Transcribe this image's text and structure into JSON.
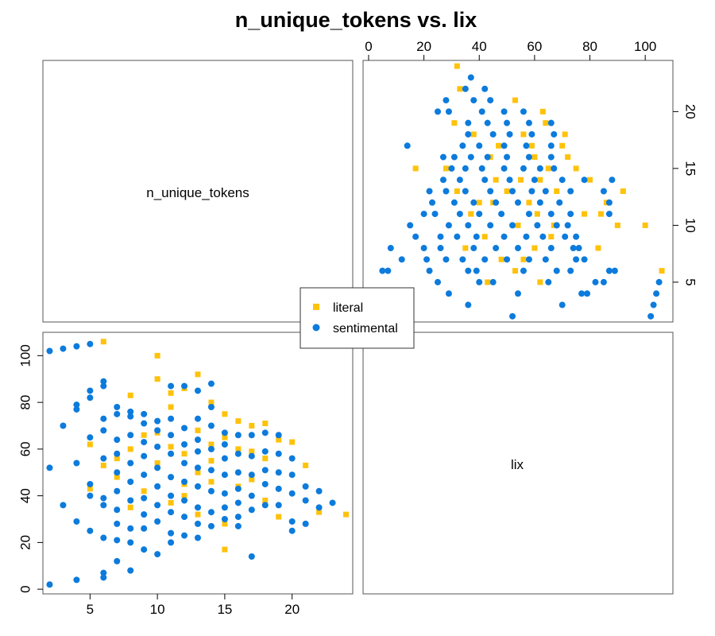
{
  "chart_data": {
    "type": "scatter",
    "title": "n_unique_tokens vs. lix",
    "variables": [
      "n_unique_tokens",
      "lix"
    ],
    "legend_position": "center",
    "colors": {
      "literal": "#FFC20A",
      "sentimental": "#0C7BDC"
    },
    "legend": [
      {
        "name": "literal",
        "color": "#FFC20A",
        "marker": "square"
      },
      {
        "name": "sentimental",
        "color": "#0C7BDC",
        "marker": "circle"
      }
    ],
    "axes": {
      "n_unique_tokens": {
        "range": [
          1.5,
          24.5
        ],
        "ticks_left": [
          5,
          10,
          15,
          20
        ],
        "ticks_right": [
          5,
          10,
          15,
          20
        ]
      },
      "lix": {
        "range": [
          -2,
          110
        ],
        "ticks": [
          0,
          20,
          40,
          60,
          80,
          100
        ]
      }
    },
    "series": [
      {
        "name": "literal",
        "x_variable": "n_unique_tokens",
        "y_variable": "lix",
        "points": [
          [
            6,
            106
          ],
          [
            10,
            100
          ],
          [
            10,
            90
          ],
          [
            13,
            92
          ],
          [
            12,
            86
          ],
          [
            11,
            84
          ],
          [
            8,
            83
          ],
          [
            14,
            80
          ],
          [
            15,
            75
          ],
          [
            11,
            78
          ],
          [
            24,
            32
          ],
          [
            22,
            33
          ],
          [
            21,
            53
          ],
          [
            20,
            63
          ],
          [
            19,
            64
          ],
          [
            19,
            31
          ],
          [
            18,
            71
          ],
          [
            17,
            70
          ],
          [
            16,
            72
          ],
          [
            16,
            44
          ],
          [
            17,
            59
          ],
          [
            17,
            47
          ],
          [
            18,
            56
          ],
          [
            18,
            38
          ],
          [
            14,
            62
          ],
          [
            14,
            55
          ],
          [
            13,
            68
          ],
          [
            13,
            50
          ],
          [
            12,
            58
          ],
          [
            12,
            45
          ],
          [
            11,
            61
          ],
          [
            11,
            37
          ],
          [
            10,
            67
          ],
          [
            10,
            54
          ],
          [
            9,
            66
          ],
          [
            9,
            42
          ],
          [
            8,
            60
          ],
          [
            8,
            35
          ],
          [
            7,
            56
          ],
          [
            7,
            48
          ],
          [
            6,
            53
          ],
          [
            5,
            62
          ],
          [
            5,
            43
          ],
          [
            15,
            17
          ],
          [
            15,
            28
          ],
          [
            13,
            32
          ],
          [
            12,
            40
          ],
          [
            16,
            60
          ],
          [
            15,
            65
          ],
          [
            14,
            46
          ]
        ]
      },
      {
        "name": "sentimental",
        "x_variable": "n_unique_tokens",
        "y_variable": "lix",
        "points": [
          [
            2,
            102
          ],
          [
            3,
            103
          ],
          [
            4,
            104
          ],
          [
            5,
            105
          ],
          [
            2,
            52
          ],
          [
            2,
            2
          ],
          [
            3,
            70
          ],
          [
            3,
            36
          ],
          [
            4,
            79
          ],
          [
            4,
            77
          ],
          [
            4,
            54
          ],
          [
            4,
            29
          ],
          [
            4,
            4
          ],
          [
            5,
            85
          ],
          [
            5,
            82
          ],
          [
            5,
            65
          ],
          [
            5,
            45
          ],
          [
            5,
            40
          ],
          [
            5,
            25
          ],
          [
            6,
            89
          ],
          [
            6,
            87
          ],
          [
            6,
            73
          ],
          [
            6,
            68
          ],
          [
            6,
            56
          ],
          [
            6,
            39
          ],
          [
            6,
            36
          ],
          [
            6,
            22
          ],
          [
            6,
            7
          ],
          [
            6,
            5
          ],
          [
            7,
            78
          ],
          [
            7,
            75
          ],
          [
            7,
            64
          ],
          [
            7,
            58
          ],
          [
            7,
            50
          ],
          [
            7,
            42
          ],
          [
            7,
            34
          ],
          [
            7,
            28
          ],
          [
            7,
            21
          ],
          [
            7,
            12
          ],
          [
            8,
            76
          ],
          [
            8,
            74
          ],
          [
            8,
            66
          ],
          [
            8,
            54
          ],
          [
            8,
            46
          ],
          [
            8,
            38
          ],
          [
            8,
            26
          ],
          [
            8,
            20
          ],
          [
            8,
            8
          ],
          [
            9,
            75
          ],
          [
            9,
            71
          ],
          [
            9,
            63
          ],
          [
            9,
            57
          ],
          [
            9,
            49
          ],
          [
            9,
            39
          ],
          [
            9,
            32
          ],
          [
            9,
            26
          ],
          [
            9,
            17
          ],
          [
            10,
            72
          ],
          [
            10,
            68
          ],
          [
            10,
            61
          ],
          [
            10,
            52
          ],
          [
            10,
            44
          ],
          [
            10,
            36
          ],
          [
            10,
            29
          ],
          [
            10,
            15
          ],
          [
            11,
            87
          ],
          [
            11,
            73
          ],
          [
            11,
            66
          ],
          [
            11,
            58
          ],
          [
            11,
            48
          ],
          [
            11,
            40
          ],
          [
            11,
            33
          ],
          [
            11,
            24
          ],
          [
            11,
            20
          ],
          [
            12,
            87
          ],
          [
            12,
            69
          ],
          [
            12,
            62
          ],
          [
            12,
            54
          ],
          [
            12,
            46
          ],
          [
            12,
            38
          ],
          [
            12,
            31
          ],
          [
            12,
            23
          ],
          [
            13,
            85
          ],
          [
            13,
            73
          ],
          [
            13,
            64
          ],
          [
            13,
            59
          ],
          [
            13,
            52
          ],
          [
            13,
            44
          ],
          [
            13,
            35
          ],
          [
            13,
            28
          ],
          [
            13,
            22
          ],
          [
            14,
            88
          ],
          [
            14,
            78
          ],
          [
            14,
            70
          ],
          [
            14,
            60
          ],
          [
            14,
            51
          ],
          [
            14,
            42
          ],
          [
            14,
            33
          ],
          [
            14,
            27
          ],
          [
            15,
            67
          ],
          [
            15,
            62
          ],
          [
            15,
            56
          ],
          [
            15,
            49
          ],
          [
            15,
            41
          ],
          [
            15,
            35
          ],
          [
            15,
            30
          ],
          [
            16,
            66
          ],
          [
            16,
            58
          ],
          [
            16,
            50
          ],
          [
            16,
            43
          ],
          [
            16,
            37
          ],
          [
            16,
            31
          ],
          [
            16,
            27
          ],
          [
            17,
            66
          ],
          [
            17,
            57
          ],
          [
            17,
            49
          ],
          [
            17,
            40
          ],
          [
            17,
            34
          ],
          [
            17,
            14
          ],
          [
            18,
            67
          ],
          [
            18,
            59
          ],
          [
            18,
            51
          ],
          [
            18,
            45
          ],
          [
            18,
            36
          ],
          [
            19,
            66
          ],
          [
            19,
            58
          ],
          [
            19,
            50
          ],
          [
            19,
            43
          ],
          [
            19,
            36
          ],
          [
            20,
            56
          ],
          [
            20,
            49
          ],
          [
            20,
            41
          ],
          [
            20,
            29
          ],
          [
            20,
            25
          ],
          [
            21,
            44
          ],
          [
            21,
            38
          ],
          [
            21,
            28
          ],
          [
            22,
            42
          ],
          [
            22,
            35
          ],
          [
            23,
            37
          ]
        ]
      }
    ]
  }
}
